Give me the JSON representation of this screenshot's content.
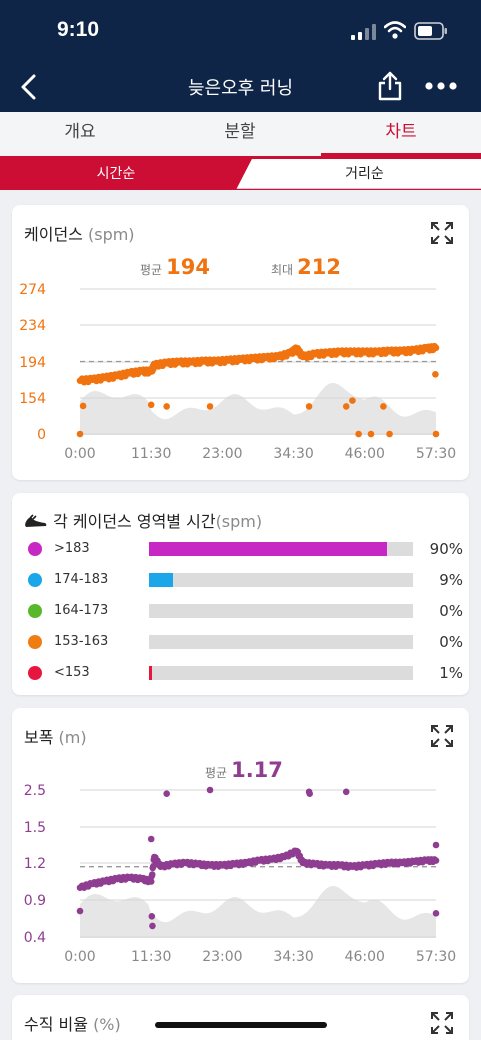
{
  "status": {
    "time": "9:10"
  },
  "nav": {
    "title": "늦은오후 러닝"
  },
  "tabs": [
    {
      "label": "개요"
    },
    {
      "label": "분할"
    },
    {
      "label": "차트"
    }
  ],
  "segment": {
    "left": "시간순",
    "right": "거리순"
  },
  "cadence": {
    "title": "케이던스",
    "unit": "(spm)",
    "avg_label": "평균",
    "avg_value": "194",
    "max_label": "최대",
    "max_value": "212",
    "accent": "#f07310"
  },
  "zones": {
    "title": "각 케이던스 영역별 시간",
    "unit": "(spm)",
    "items": [
      {
        "label": ">183",
        "pct": "90%",
        "fraction": 0.9,
        "color": "#c728c4"
      },
      {
        "label": "174-183",
        "pct": "9%",
        "fraction": 0.09,
        "color": "#1aa6e8"
      },
      {
        "label": "164-173",
        "pct": "0%",
        "fraction": 0.0,
        "color": "#58b82a"
      },
      {
        "label": "153-163",
        "pct": "0%",
        "fraction": 0.0,
        "color": "#f07d12"
      },
      {
        "label": "<153",
        "pct": "1%",
        "fraction": 0.01,
        "color": "#e8163f"
      }
    ]
  },
  "stride": {
    "title": "보폭",
    "unit": "(m)",
    "avg_label": "평균",
    "avg_value": "1.17",
    "accent": "#8e3d91"
  },
  "vertical_ratio": {
    "title": "수직 비율",
    "unit": "(%)"
  },
  "chart_data": [
    {
      "type": "scatter",
      "title": "케이던스 (spm)",
      "x_ticks": [
        "0:00",
        "11:30",
        "23:00",
        "34:30",
        "46:00",
        "57:30"
      ],
      "y_ticks": [
        "274",
        "234",
        "194",
        "154",
        "0"
      ],
      "xlim_minutes": [
        0,
        57.5
      ],
      "average": 194,
      "series": [
        {
          "name": "",
          "color": "#f07310",
          "points": [
            [
              0,
              173
            ],
            [
              2,
              174
            ],
            [
              4,
              176
            ],
            [
              6,
              178
            ],
            [
              8,
              181
            ],
            [
              10,
              183
            ],
            [
              11.5,
              183
            ],
            [
              12,
              190
            ],
            [
              14,
              192
            ],
            [
              16,
              193
            ],
            [
              18,
              193
            ],
            [
              20,
              194
            ],
            [
              22,
              194
            ],
            [
              24,
              195
            ],
            [
              26,
              196
            ],
            [
              28,
              197
            ],
            [
              30,
              198
            ],
            [
              32,
              199
            ],
            [
              34,
              203
            ],
            [
              35,
              208
            ],
            [
              36,
              199
            ],
            [
              38,
              202
            ],
            [
              40,
              203
            ],
            [
              42,
              204
            ],
            [
              44,
              204
            ],
            [
              46,
              204
            ],
            [
              48,
              204
            ],
            [
              50,
              205
            ],
            [
              52,
              205
            ],
            [
              54,
              206
            ],
            [
              56,
              208
            ],
            [
              57.5,
              209
            ],
            [
              0.5,
              120
            ],
            [
              11.5,
              125
            ],
            [
              14,
              118
            ],
            [
              21,
              118
            ],
            [
              37,
              118
            ],
            [
              43,
              118
            ],
            [
              44,
              143
            ],
            [
              49,
              118
            ],
            [
              45,
              0
            ],
            [
              47,
              0
            ],
            [
              50,
              0
            ],
            [
              57.5,
              0
            ],
            [
              0,
              0
            ],
            [
              57.4,
              180
            ]
          ]
        }
      ]
    },
    {
      "type": "scatter",
      "title": "보폭 (m)",
      "x_ticks": [
        "0:00",
        "11:30",
        "23:00",
        "34:30",
        "46:00",
        "57:30"
      ],
      "y_ticks": [
        "2.5",
        "1.5",
        "1.2",
        "0.9",
        "0.4"
      ],
      "xlim_minutes": [
        0,
        57.5
      ],
      "average": 1.17,
      "series": [
        {
          "name": "",
          "color": "#8e3d91",
          "points": [
            [
              0,
              1.0
            ],
            [
              2,
              1.03
            ],
            [
              4,
              1.05
            ],
            [
              6,
              1.07
            ],
            [
              8,
              1.08
            ],
            [
              10,
              1.07
            ],
            [
              11.5,
              1.05
            ],
            [
              12,
              1.25
            ],
            [
              13,
              1.17
            ],
            [
              15,
              1.19
            ],
            [
              17,
              1.2
            ],
            [
              19,
              1.19
            ],
            [
              21,
              1.18
            ],
            [
              23,
              1.18
            ],
            [
              25,
              1.19
            ],
            [
              27,
              1.2
            ],
            [
              29,
              1.22
            ],
            [
              31,
              1.23
            ],
            [
              33,
              1.25
            ],
            [
              35,
              1.3
            ],
            [
              36,
              1.2
            ],
            [
              38,
              1.19
            ],
            [
              40,
              1.18
            ],
            [
              42,
              1.18
            ],
            [
              44,
              1.17
            ],
            [
              46,
              1.18
            ],
            [
              48,
              1.19
            ],
            [
              50,
              1.2
            ],
            [
              52,
              1.2
            ],
            [
              54,
              1.21
            ],
            [
              56,
              1.22
            ],
            [
              57.5,
              1.22
            ],
            [
              0,
              0.75
            ],
            [
              11.5,
              1.4
            ],
            [
              11.6,
              0.68
            ],
            [
              11.7,
              0.55
            ],
            [
              14,
              2.4
            ],
            [
              21,
              2.5
            ],
            [
              37,
              2.45
            ],
            [
              37.1,
              2.4
            ],
            [
              43,
              2.45
            ],
            [
              57.5,
              0.72
            ],
            [
              57.5,
              1.35
            ]
          ]
        }
      ]
    }
  ]
}
